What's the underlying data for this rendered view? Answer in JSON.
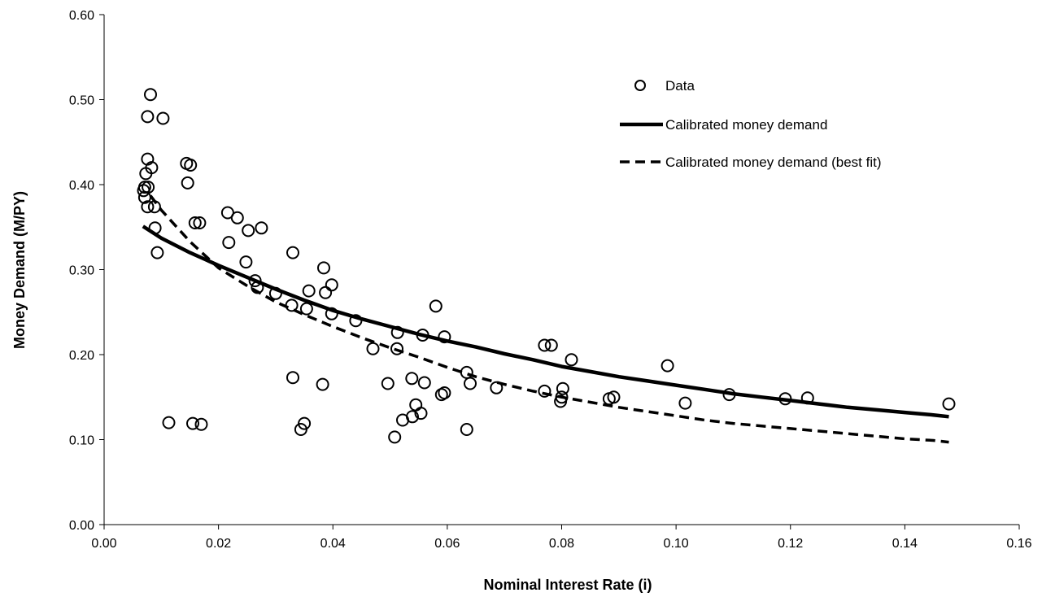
{
  "chart_data": {
    "type": "scatter",
    "title": "",
    "xlabel": "Nominal Interest Rate (i)",
    "ylabel": "Money Demand (M/PY)",
    "xlim": [
      0,
      0.16
    ],
    "ylim": [
      0,
      0.6
    ],
    "x_ticks": [
      0.0,
      0.02,
      0.04,
      0.06,
      0.08,
      0.1,
      0.12,
      0.14,
      0.16
    ],
    "x_tick_labels": [
      "0.00",
      "0.02",
      "0.04",
      "0.06",
      "0.08",
      "0.10",
      "0.12",
      "0.14",
      "0.16"
    ],
    "y_ticks": [
      0.0,
      0.1,
      0.2,
      0.3,
      0.4,
      0.5,
      0.6
    ],
    "y_tick_labels": [
      "0.00",
      "0.10",
      "0.20",
      "0.30",
      "0.40",
      "0.50",
      "0.60"
    ],
    "grid": false,
    "legend_position": "top-right",
    "series": [
      {
        "name": "Data",
        "kind": "scatter",
        "marker": "open-circle",
        "points": [
          [
            0.0081,
            0.506
          ],
          [
            0.0076,
            0.48
          ],
          [
            0.0103,
            0.478
          ],
          [
            0.0076,
            0.43
          ],
          [
            0.0144,
            0.425
          ],
          [
            0.0151,
            0.423
          ],
          [
            0.0083,
            0.42
          ],
          [
            0.0073,
            0.413
          ],
          [
            0.0146,
            0.402
          ],
          [
            0.0071,
            0.397
          ],
          [
            0.0077,
            0.397
          ],
          [
            0.0069,
            0.393
          ],
          [
            0.0071,
            0.385
          ],
          [
            0.0076,
            0.374
          ],
          [
            0.0088,
            0.374
          ],
          [
            0.0216,
            0.367
          ],
          [
            0.0233,
            0.361
          ],
          [
            0.0159,
            0.355
          ],
          [
            0.0167,
            0.355
          ],
          [
            0.0089,
            0.349
          ],
          [
            0.0275,
            0.349
          ],
          [
            0.0252,
            0.346
          ],
          [
            0.0218,
            0.332
          ],
          [
            0.0093,
            0.32
          ],
          [
            0.033,
            0.32
          ],
          [
            0.0248,
            0.309
          ],
          [
            0.0384,
            0.302
          ],
          [
            0.0264,
            0.287
          ],
          [
            0.0398,
            0.282
          ],
          [
            0.0268,
            0.279
          ],
          [
            0.0358,
            0.275
          ],
          [
            0.0387,
            0.273
          ],
          [
            0.03,
            0.272
          ],
          [
            0.0328,
            0.258
          ],
          [
            0.0354,
            0.254
          ],
          [
            0.058,
            0.257
          ],
          [
            0.0398,
            0.248
          ],
          [
            0.044,
            0.24
          ],
          [
            0.0513,
            0.226
          ],
          [
            0.0557,
            0.223
          ],
          [
            0.0595,
            0.221
          ],
          [
            0.077,
            0.211
          ],
          [
            0.0782,
            0.211
          ],
          [
            0.047,
            0.207
          ],
          [
            0.0512,
            0.207
          ],
          [
            0.0817,
            0.194
          ],
          [
            0.0985,
            0.187
          ],
          [
            0.0634,
            0.179
          ],
          [
            0.033,
            0.173
          ],
          [
            0.0538,
            0.172
          ],
          [
            0.056,
            0.167
          ],
          [
            0.0496,
            0.166
          ],
          [
            0.064,
            0.166
          ],
          [
            0.0382,
            0.165
          ],
          [
            0.0686,
            0.161
          ],
          [
            0.0802,
            0.16
          ],
          [
            0.077,
            0.157
          ],
          [
            0.0595,
            0.155
          ],
          [
            0.059,
            0.153
          ],
          [
            0.1093,
            0.153
          ],
          [
            0.08,
            0.15
          ],
          [
            0.0891,
            0.15
          ],
          [
            0.123,
            0.149
          ],
          [
            0.0883,
            0.148
          ],
          [
            0.1191,
            0.148
          ],
          [
            0.0798,
            0.145
          ],
          [
            0.1016,
            0.143
          ],
          [
            0.1477,
            0.142
          ],
          [
            0.0545,
            0.141
          ],
          [
            0.0554,
            0.131
          ],
          [
            0.0539,
            0.127
          ],
          [
            0.0522,
            0.123
          ],
          [
            0.0113,
            0.12
          ],
          [
            0.0155,
            0.119
          ],
          [
            0.035,
            0.119
          ],
          [
            0.017,
            0.118
          ],
          [
            0.0344,
            0.112
          ],
          [
            0.0634,
            0.112
          ],
          [
            0.0508,
            0.103
          ]
        ]
      },
      {
        "name": "Calibrated money demand",
        "kind": "line",
        "style": "solid",
        "points": [
          [
            0.0068,
            0.351
          ],
          [
            0.01,
            0.337
          ],
          [
            0.015,
            0.32
          ],
          [
            0.02,
            0.305
          ],
          [
            0.025,
            0.291
          ],
          [
            0.03,
            0.277
          ],
          [
            0.035,
            0.264
          ],
          [
            0.04,
            0.252
          ],
          [
            0.045,
            0.242
          ],
          [
            0.05,
            0.233
          ],
          [
            0.055,
            0.224
          ],
          [
            0.06,
            0.216
          ],
          [
            0.065,
            0.209
          ],
          [
            0.07,
            0.201
          ],
          [
            0.075,
            0.194
          ],
          [
            0.08,
            0.186
          ],
          [
            0.085,
            0.18
          ],
          [
            0.09,
            0.174
          ],
          [
            0.095,
            0.169
          ],
          [
            0.1,
            0.164
          ],
          [
            0.105,
            0.159
          ],
          [
            0.11,
            0.154
          ],
          [
            0.115,
            0.15
          ],
          [
            0.12,
            0.146
          ],
          [
            0.125,
            0.142
          ],
          [
            0.13,
            0.138
          ],
          [
            0.135,
            0.135
          ],
          [
            0.14,
            0.132
          ],
          [
            0.145,
            0.129
          ],
          [
            0.1477,
            0.127
          ]
        ]
      },
      {
        "name": "Calibrated money demand (best fit)",
        "kind": "line",
        "style": "dashed",
        "points": [
          [
            0.0081,
            0.387
          ],
          [
            0.01,
            0.37
          ],
          [
            0.015,
            0.333
          ],
          [
            0.02,
            0.302
          ],
          [
            0.025,
            0.281
          ],
          [
            0.03,
            0.262
          ],
          [
            0.035,
            0.247
          ],
          [
            0.04,
            0.233
          ],
          [
            0.045,
            0.22
          ],
          [
            0.05,
            0.208
          ],
          [
            0.055,
            0.197
          ],
          [
            0.06,
            0.185
          ],
          [
            0.065,
            0.174
          ],
          [
            0.07,
            0.165
          ],
          [
            0.075,
            0.157
          ],
          [
            0.08,
            0.15
          ],
          [
            0.085,
            0.144
          ],
          [
            0.09,
            0.138
          ],
          [
            0.095,
            0.133
          ],
          [
            0.1,
            0.128
          ],
          [
            0.105,
            0.123
          ],
          [
            0.11,
            0.119
          ],
          [
            0.115,
            0.116
          ],
          [
            0.12,
            0.113
          ],
          [
            0.125,
            0.11
          ],
          [
            0.13,
            0.107
          ],
          [
            0.135,
            0.104
          ],
          [
            0.14,
            0.101
          ],
          [
            0.145,
            0.099
          ],
          [
            0.1477,
            0.097
          ]
        ]
      }
    ]
  }
}
